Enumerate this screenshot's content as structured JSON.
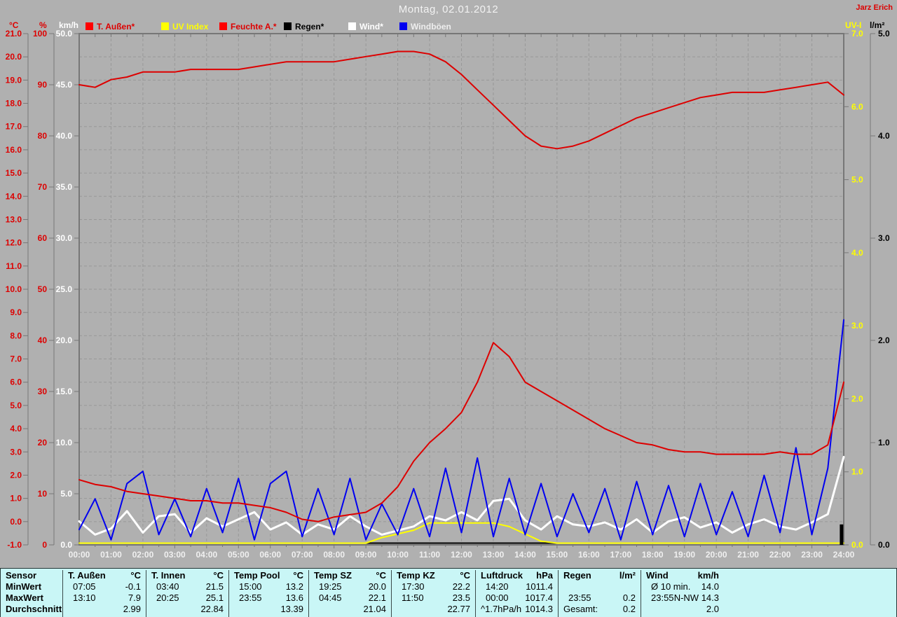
{
  "header": {
    "title": "Montag, 02.01.2012",
    "author": "Jarz Erich"
  },
  "legend": [
    {
      "label": "T. Außen*",
      "swatch": "#ff0000",
      "label_color": "#dd0000"
    },
    {
      "label": "UV Index",
      "swatch": "#ffff00",
      "label_color": "#ffff00"
    },
    {
      "label": "Feuchte A.*",
      "swatch": "#ff0000",
      "label_color": "#dd0000"
    },
    {
      "label": "Regen*",
      "swatch": "#000000",
      "label_color": "#000000"
    },
    {
      "label": "Wind*",
      "swatch": "#ffffff",
      "label_color": "#ffffff"
    },
    {
      "label": "Windböen",
      "swatch": "#0000f0",
      "label_color": "#eeeeee"
    }
  ],
  "axes": {
    "temp": {
      "unit": "°C",
      "min": -1,
      "max": 21,
      "color": "#dd0000",
      "ticks": [
        "21.0",
        "20.0",
        "19.0",
        "18.0",
        "17.0",
        "16.0",
        "15.0",
        "14.0",
        "13.0",
        "12.0",
        "11.0",
        "10.0",
        "9.0",
        "8.0",
        "7.0",
        "6.0",
        "5.0",
        "4.0",
        "3.0",
        "2.0",
        "1.0",
        "0.0",
        "-1.0"
      ]
    },
    "humidity": {
      "unit": "%",
      "min": 0,
      "max": 100,
      "color": "#dd0000",
      "ticks": [
        "100",
        "90",
        "80",
        "70",
        "60",
        "50",
        "40",
        "30",
        "20",
        "10",
        "0"
      ]
    },
    "wind": {
      "unit": "km/h",
      "min": 0,
      "max": 50,
      "color": "#ffffff",
      "ticks": [
        "50.0",
        "45.0",
        "40.0",
        "35.0",
        "30.0",
        "25.0",
        "20.0",
        "15.0",
        "10.0",
        "5.0",
        "0.0"
      ]
    },
    "uv": {
      "unit": "UV-I",
      "min": 0,
      "max": 7,
      "color": "#ffff00",
      "ticks": [
        "7.0",
        "6.0",
        "5.0",
        "4.0",
        "3.0",
        "2.0",
        "1.0",
        "0.0"
      ]
    },
    "rain": {
      "unit": "l/m²",
      "min": 0,
      "max": 5,
      "color": "#000000",
      "ticks": [
        "5.0",
        "4.0",
        "3.0",
        "2.0",
        "1.0",
        "0.0"
      ]
    },
    "x": {
      "labels": [
        "00:00",
        "01:00",
        "02:00",
        "03:00",
        "04:00",
        "05:00",
        "06:00",
        "07:00",
        "08:00",
        "09:00",
        "10:00",
        "11:00",
        "12:00",
        "13:00",
        "14:00",
        "15:00",
        "16:00",
        "17:00",
        "18:00",
        "19:00",
        "20:00",
        "21:00",
        "22:00",
        "23:00",
        "24:00"
      ]
    }
  },
  "chart_data": {
    "type": "line",
    "title": "Montag, 02.01.2012",
    "x_start_hours": 0,
    "x_step_hours": 0.5,
    "x_end_hours": 24,
    "grid": "dashed, 1 °C horizontal spacing, 1 h vertical spacing",
    "series": [
      {
        "id": "regen",
        "name": "Regen",
        "axis": "rain",
        "color": "#000000",
        "width": 2,
        "values": [
          0,
          0,
          0,
          0,
          0,
          0,
          0,
          0,
          0,
          0,
          0,
          0,
          0,
          0,
          0,
          0,
          0,
          0,
          0,
          0,
          0,
          0,
          0,
          0,
          0,
          0,
          0,
          0,
          0,
          0,
          0,
          0,
          0,
          0,
          0,
          0,
          0,
          0,
          0,
          0,
          0,
          0,
          0,
          0,
          0,
          0,
          0,
          0,
          0
        ]
      },
      {
        "id": "uv-index",
        "name": "UV Index",
        "axis": "uv",
        "color": "#ffff00",
        "width": 2,
        "values": [
          0,
          0,
          0,
          0,
          0,
          0,
          0,
          0,
          0,
          0,
          0,
          0,
          0,
          0,
          0,
          0,
          0,
          0,
          0,
          0.1,
          0.15,
          0.2,
          0.3,
          0.3,
          0.3,
          0.3,
          0.3,
          0.25,
          0.15,
          0.05,
          0,
          0,
          0,
          0,
          0,
          0,
          0,
          0,
          0,
          0,
          0,
          0,
          0,
          0,
          0,
          0,
          0,
          0,
          0
        ]
      },
      {
        "id": "wind",
        "name": "Wind",
        "axis": "wind",
        "color": "#ffffff",
        "width": 3,
        "values": [
          2.3,
          1.0,
          1.6,
          3.3,
          1.2,
          2.8,
          3.0,
          1.2,
          2.6,
          1.8,
          2.5,
          3.2,
          1.5,
          2.2,
          1.0,
          2.0,
          1.5,
          2.8,
          1.8,
          1.0,
          1.4,
          1.8,
          2.8,
          2.4,
          3.2,
          2.4,
          4.3,
          4.5,
          2.4,
          1.5,
          2.8,
          2.0,
          1.8,
          2.2,
          1.5,
          2.5,
          1.2,
          2.3,
          2.7,
          1.7,
          2.2,
          1.2,
          2.0,
          2.5,
          1.8,
          1.5,
          2.2,
          3.0,
          8.6
        ]
      },
      {
        "id": "windboeen",
        "name": "Windböen",
        "axis": "wind",
        "color": "#0000f0",
        "width": 2,
        "values": [
          1.5,
          4.5,
          0.5,
          6.0,
          7.2,
          1.0,
          4.5,
          0.8,
          5.5,
          1.2,
          6.5,
          0.5,
          6.0,
          7.2,
          0.8,
          5.5,
          1.0,
          6.5,
          0.5,
          4.0,
          1.0,
          5.5,
          0.8,
          7.5,
          1.2,
          8.5,
          0.8,
          6.5,
          1.0,
          6.0,
          0.8,
          5.0,
          1.2,
          5.5,
          0.5,
          6.2,
          1.0,
          5.8,
          0.8,
          6.0,
          1.0,
          5.2,
          0.8,
          6.8,
          1.2,
          9.5,
          1.0,
          7.5,
          22.0
        ]
      },
      {
        "id": "feuchte-aussen",
        "name": "Feuchte A.",
        "axis": "humidity",
        "color": "#dd0000",
        "width": 2,
        "values": [
          90,
          89.5,
          91,
          91.5,
          92.5,
          92.5,
          92.5,
          93,
          93,
          93,
          93,
          93.5,
          94,
          94.5,
          94.5,
          94.5,
          94.5,
          95,
          95.5,
          96,
          96.5,
          96.5,
          96,
          94.5,
          92,
          89,
          86,
          83,
          80,
          78,
          77.5,
          78,
          79,
          80.5,
          82,
          83.5,
          84.5,
          85.5,
          86.5,
          87.5,
          88,
          88.5,
          88.5,
          88.5,
          89,
          89.5,
          90,
          90.5,
          88
        ]
      },
      {
        "id": "t-aussen",
        "name": "T. Außen",
        "axis": "temp",
        "color": "#dd0000",
        "width": 2,
        "values": [
          1.8,
          1.6,
          1.5,
          1.3,
          1.2,
          1.1,
          1.0,
          0.9,
          0.9,
          0.8,
          0.8,
          0.7,
          0.6,
          0.4,
          0.1,
          0.0,
          0.2,
          0.3,
          0.4,
          0.8,
          1.5,
          2.6,
          3.4,
          4.0,
          4.7,
          6.0,
          7.7,
          7.1,
          6.0,
          5.6,
          5.2,
          4.8,
          4.4,
          4.0,
          3.7,
          3.4,
          3.3,
          3.1,
          3.0,
          3.0,
          2.9,
          2.9,
          2.9,
          2.9,
          3.0,
          2.9,
          2.9,
          3.3,
          6.0
        ]
      }
    ],
    "rain_bar": {
      "time_hours": 23.92,
      "time_label": "23:55",
      "value": 0.2
    }
  },
  "table": {
    "row_headers": [
      "Sensor",
      "MinWert",
      "MaxWert",
      "Durchschnitt"
    ],
    "columns": [
      {
        "name": "T. Außen",
        "unit": "°C",
        "min_time": "07:05",
        "min_value": "-0.1",
        "max_time": "13:10",
        "max_value": "7.9",
        "avg_label": "",
        "avg_value": "2.99"
      },
      {
        "name": "T. Innen",
        "unit": "°C",
        "min_time": "03:40",
        "min_value": "21.5",
        "max_time": "20:25",
        "max_value": "25.1",
        "avg_label": "",
        "avg_value": "22.84"
      },
      {
        "name": "Temp Pool",
        "unit": "°C",
        "min_time": "15:00",
        "min_value": "13.2",
        "max_time": "23:55",
        "max_value": "13.6",
        "avg_label": "",
        "avg_value": "13.39"
      },
      {
        "name": "Temp SZ",
        "unit": "°C",
        "min_time": "19:25",
        "min_value": "20.0",
        "max_time": "04:45",
        "max_value": "22.1",
        "avg_label": "",
        "avg_value": "21.04"
      },
      {
        "name": "Temp KZ",
        "unit": "°C",
        "min_time": "17:30",
        "min_value": "22.2",
        "max_time": "11:50",
        "max_value": "23.5",
        "avg_label": "",
        "avg_value": "22.77"
      },
      {
        "name": "Luftdruck",
        "unit": "hPa",
        "min_time": "14:20",
        "min_value": "1011.4",
        "max_time": "00:00",
        "max_value": "1017.4",
        "avg_label": "^1.7hPa/h",
        "avg_value": "1014.3"
      },
      {
        "name": "Regen",
        "unit": "l/m²",
        "min_time": "",
        "min_value": "",
        "max_time": "23:55",
        "max_value": "0.2",
        "avg_label": "Gesamt:",
        "avg_value": "0.2"
      },
      {
        "name": "Wind",
        "unit": "km/h",
        "min_time": "Ø 10 min.",
        "min_value": "14.0",
        "max_time": "23:55",
        "max_value": "N-NW 14.3",
        "avg_label": "",
        "avg_value": "2.0"
      }
    ]
  }
}
